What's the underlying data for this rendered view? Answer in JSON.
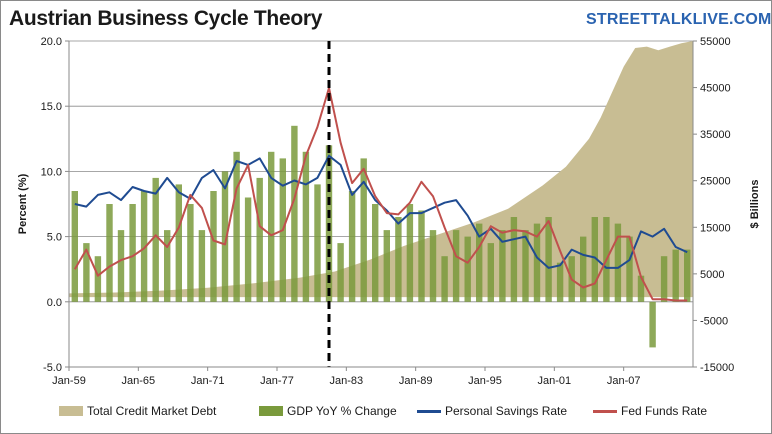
{
  "header": {
    "title": "Austrian Business Cycle Theory",
    "brand": "STREETTALKLIVE.COM"
  },
  "colors": {
    "credit": "#c8bd93",
    "gdp": "#7a9a3c",
    "savings": "#1f4b91",
    "fed": "#c0504d",
    "marker": "#000000",
    "grid": "#8a8a8a"
  },
  "chart_data": {
    "type": "combo",
    "title": "Austrian Business Cycle Theory",
    "ylabel": "Percent (%)",
    "y2label": "$ Billions",
    "ylim": [
      -5,
      20
    ],
    "y2lim": [
      -15000,
      55000
    ],
    "xlim": [
      1959,
      2013
    ],
    "y_ticks": [
      "-5.0",
      "0.0",
      "5.0",
      "10.0",
      "15.0",
      "20.0"
    ],
    "y2_ticks": [
      "-15000",
      "-5000",
      "5000",
      "15000",
      "25000",
      "35000",
      "45000",
      "55000"
    ],
    "x_ticks": [
      "Jan-59",
      "Jan-65",
      "Jan-71",
      "Jan-77",
      "Jan-83",
      "Jan-89",
      "Jan-95",
      "Jan-01",
      "Jan-07"
    ],
    "marker_x": 1981.5,
    "series": [
      {
        "name": "Total Credit Market Debt",
        "type": "area",
        "axis": "secondary",
        "x": [
          1959,
          1963,
          1967,
          1971,
          1975,
          1979,
          1982,
          1985,
          1988,
          1991,
          1994,
          1997,
          2000,
          2002,
          2004,
          2005,
          2006,
          2007,
          2008,
          2009,
          2010,
          2011,
          2012,
          2013
        ],
        "values": [
          800,
          1000,
          1400,
          2000,
          3000,
          4200,
          5500,
          8000,
          11000,
          13500,
          16000,
          19000,
          24000,
          28000,
          34000,
          38500,
          44000,
          49500,
          53500,
          53800,
          53000,
          53800,
          54500,
          55000
        ]
      },
      {
        "name": "GDP YoY % Change",
        "type": "bar",
        "axis": "primary",
        "x": [
          1959,
          1960,
          1961,
          1962,
          1963,
          1964,
          1965,
          1966,
          1967,
          1968,
          1969,
          1970,
          1971,
          1972,
          1973,
          1974,
          1975,
          1976,
          1977,
          1978,
          1979,
          1980,
          1981,
          1982,
          1983,
          1984,
          1985,
          1986,
          1987,
          1988,
          1989,
          1990,
          1991,
          1992,
          1993,
          1994,
          1995,
          1996,
          1997,
          1998,
          1999,
          2000,
          2001,
          2002,
          2003,
          2004,
          2005,
          2006,
          2007,
          2008,
          2009,
          2010,
          2011,
          2012
        ],
        "values": [
          8.5,
          4.5,
          3.5,
          7.5,
          5.5,
          7.5,
          8.5,
          9.5,
          5.5,
          9.0,
          7.5,
          5.5,
          8.5,
          10.0,
          11.5,
          8.0,
          9.5,
          11.5,
          11.0,
          13.5,
          11.5,
          9.0,
          12.0,
          4.5,
          8.5,
          11.0,
          7.5,
          5.5,
          6.5,
          7.5,
          7.0,
          5.5,
          3.5,
          5.5,
          5.0,
          6.0,
          4.5,
          5.5,
          6.5,
          5.5,
          6.0,
          6.5,
          3.0,
          3.5,
          5.0,
          6.5,
          6.5,
          6.0,
          5.0,
          2.0,
          -3.5,
          3.5,
          4.0,
          4.0
        ]
      },
      {
        "name": "Personal Savings Rate",
        "type": "line",
        "axis": "primary",
        "x": [
          1959,
          1960,
          1961,
          1962,
          1963,
          1964,
          1965,
          1966,
          1967,
          1968,
          1969,
          1970,
          1971,
          1972,
          1973,
          1974,
          1975,
          1976,
          1977,
          1978,
          1979,
          1980,
          1981,
          1982,
          1983,
          1984,
          1985,
          1986,
          1987,
          1988,
          1989,
          1990,
          1991,
          1992,
          1993,
          1994,
          1995,
          1996,
          1997,
          1998,
          1999,
          2000,
          2001,
          2002,
          2003,
          2004,
          2005,
          2006,
          2007,
          2008,
          2009,
          2010,
          2011,
          2012
        ],
        "values": [
          7.5,
          7.3,
          8.2,
          8.4,
          7.8,
          8.8,
          8.5,
          8.3,
          9.5,
          8.4,
          7.9,
          9.5,
          10.1,
          8.7,
          10.8,
          10.5,
          11.0,
          9.5,
          8.9,
          9.3,
          9.0,
          9.5,
          11.2,
          10.5,
          8.2,
          9.2,
          7.8,
          7.0,
          6.0,
          6.8,
          6.8,
          7.2,
          7.6,
          7.8,
          6.6,
          5.0,
          5.6,
          4.6,
          4.8,
          5.0,
          3.4,
          2.6,
          2.8,
          4.0,
          3.6,
          3.4,
          2.6,
          2.6,
          3.2,
          5.4,
          5.0,
          5.6,
          4.2,
          3.8
        ]
      },
      {
        "name": "Fed Funds Rate",
        "type": "line",
        "axis": "primary",
        "x": [
          1959,
          1960,
          1961,
          1962,
          1963,
          1964,
          1965,
          1966,
          1967,
          1968,
          1969,
          1970,
          1971,
          1972,
          1973,
          1974,
          1975,
          1976,
          1977,
          1978,
          1979,
          1980,
          1981,
          1982,
          1983,
          1984,
          1985,
          1986,
          1987,
          1988,
          1989,
          1990,
          1991,
          1992,
          1993,
          1994,
          1995,
          1996,
          1997,
          1998,
          1999,
          2000,
          2001,
          2002,
          2003,
          2004,
          2005,
          2006,
          2007,
          2008,
          2009,
          2010,
          2011,
          2012
        ],
        "values": [
          2.5,
          4.0,
          2.0,
          2.7,
          3.2,
          3.5,
          4.1,
          5.1,
          4.2,
          5.7,
          8.2,
          7.2,
          4.7,
          4.4,
          8.7,
          10.5,
          5.8,
          5.1,
          5.5,
          7.9,
          11.2,
          13.4,
          16.4,
          12.2,
          9.1,
          10.2,
          8.1,
          6.8,
          6.7,
          7.6,
          9.2,
          8.1,
          5.7,
          3.5,
          3.0,
          4.2,
          5.8,
          5.3,
          5.5,
          5.4,
          5.0,
          6.2,
          3.9,
          1.7,
          1.1,
          1.4,
          3.2,
          5.0,
          5.0,
          1.9,
          0.2,
          0.2,
          0.1,
          0.1
        ]
      }
    ],
    "legend": [
      "Total Credit Market Debt",
      "GDP YoY % Change",
      "Personal Savings Rate",
      "Fed Funds Rate"
    ],
    "legend_position": "bottom",
    "grid": true
  }
}
